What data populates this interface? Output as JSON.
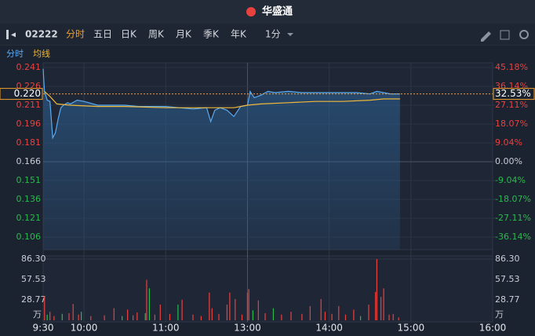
{
  "header": {
    "logo": "华盛通"
  },
  "toolbar": {
    "code": "02222",
    "tabs": [
      "分时",
      "五日",
      "日K",
      "周K",
      "月K",
      "季K",
      "年K"
    ],
    "interval": "1分"
  },
  "chart_data": [
    {
      "type": "line",
      "xlim": [
        0,
        330
      ],
      "xticks": [
        {
          "value": 0,
          "label": "9:30"
        },
        {
          "value": 30,
          "label": "10:00"
        },
        {
          "value": 90,
          "label": "11:00"
        },
        {
          "value": 150,
          "label": "13:00"
        },
        {
          "value": 210,
          "label": "14:00"
        },
        {
          "value": 270,
          "label": "15:00"
        },
        {
          "value": 330,
          "label": "16:00"
        }
      ],
      "ylim": [
        0.106,
        0.241
      ],
      "yticks": [
        0.241,
        0.226,
        0.211,
        0.196,
        0.181,
        0.166,
        0.151,
        0.136,
        0.121,
        0.106
      ],
      "y2lim": [
        -36.14,
        45.18
      ],
      "y2ticks": [
        {
          "value": 45.18,
          "label": "45.18%"
        },
        {
          "value": 36.14,
          "label": "36.14%"
        },
        {
          "value": 27.11,
          "label": "27.11%"
        },
        {
          "value": 18.07,
          "label": "18.07%"
        },
        {
          "value": 9.04,
          "label": "9.04%"
        },
        {
          "value": 0,
          "label": "0.00%"
        },
        {
          "value": -9.04,
          "label": "-9.04%"
        },
        {
          "value": -18.07,
          "label": "-18.07%"
        },
        {
          "value": -27.11,
          "label": "-27.11%"
        },
        {
          "value": -36.14,
          "label": "-36.14%"
        }
      ],
      "last_price": {
        "value": 0.22,
        "label": "0.220"
      },
      "last_change": {
        "value": 32.53,
        "label": "32.53%"
      },
      "series": [
        {
          "name": "分时",
          "color": "#5aaaf2",
          "x": [
            0,
            1,
            3,
            5,
            7,
            9,
            11,
            13,
            15,
            18,
            20,
            25,
            30,
            40,
            50,
            60,
            70,
            80,
            90,
            100,
            110,
            120,
            123,
            126,
            130,
            135,
            140,
            145,
            150,
            152,
            155,
            160,
            165,
            170,
            180,
            190,
            200,
            210,
            220,
            230,
            240,
            245,
            250,
            255,
            262
          ],
          "values": [
            0.24,
            0.222,
            0.215,
            0.214,
            0.185,
            0.189,
            0.2,
            0.209,
            0.211,
            0.213,
            0.212,
            0.215,
            0.214,
            0.211,
            0.211,
            0.211,
            0.21,
            0.21,
            0.21,
            0.209,
            0.208,
            0.209,
            0.198,
            0.207,
            0.209,
            0.207,
            0.202,
            0.21,
            0.211,
            0.222,
            0.217,
            0.219,
            0.222,
            0.221,
            0.222,
            0.221,
            0.221,
            0.221,
            0.221,
            0.221,
            0.22,
            0.222,
            0.221,
            0.22,
            0.22
          ]
        },
        {
          "name": "均线",
          "color": "#f0b93a",
          "x": [
            1,
            5,
            10,
            20,
            40,
            60,
            90,
            120,
            140,
            150,
            160,
            180,
            200,
            220,
            240,
            250,
            262
          ],
          "values": [
            0.222,
            0.218,
            0.212,
            0.211,
            0.21,
            0.21,
            0.209,
            0.209,
            0.209,
            0.211,
            0.212,
            0.213,
            0.214,
            0.214,
            0.215,
            0.216,
            0.216
          ]
        }
      ]
    },
    {
      "type": "bar",
      "xlim": [
        0,
        330
      ],
      "ylim": [
        0,
        86.3
      ],
      "yticks": [
        {
          "value": 86.3,
          "label": "86.30"
        },
        57.53,
        28.77
      ],
      "unit": "万",
      "x": [
        1,
        3,
        5,
        8,
        14,
        19,
        22,
        26,
        28,
        35,
        45,
        52,
        58,
        62,
        66,
        69,
        75,
        76,
        78,
        82,
        86,
        93,
        99,
        102,
        110,
        116,
        122,
        124,
        129,
        135,
        137,
        141,
        146,
        150,
        151,
        154,
        158,
        163,
        169,
        175,
        182,
        190,
        196,
        204,
        207,
        212,
        217,
        222,
        228,
        233,
        239,
        244,
        245,
        248,
        250,
        254,
        257,
        261
      ],
      "values": [
        34,
        8,
        12,
        6,
        9,
        10,
        23,
        8,
        12,
        6,
        7,
        17,
        6,
        15,
        7,
        11,
        10,
        57,
        45,
        8,
        22,
        9,
        22,
        29,
        8,
        6,
        39,
        17,
        9,
        22,
        39,
        30,
        8,
        39,
        44,
        14,
        28,
        10,
        17,
        8,
        12,
        9,
        20,
        30,
        12,
        9,
        20,
        8,
        15,
        6,
        22,
        40,
        86.3,
        33,
        45,
        8,
        9,
        4
      ],
      "colors": [
        "#e8423f",
        "#2ab94e",
        "#e8423f",
        "#e8423f",
        "#2ab94e",
        "#e8423f",
        "#e8423f",
        "#e8423f",
        "#2ab94e",
        "#e8423f",
        "#e8423f",
        "#e8423f",
        "#2ab94e",
        "#e8423f",
        "#e8423f",
        "#e8423f",
        "#2ab94e",
        "#e8423f",
        "#2ab94e",
        "#e8423f",
        "#e8423f",
        "#e8423f",
        "#2ab94e",
        "#e8423f",
        "#e8423f",
        "#e8423f",
        "#e8423f",
        "#e8423f",
        "#e8423f",
        "#e8423f",
        "#e8423f",
        "#e8423f",
        "#e8423f",
        "#e8423f",
        "#e8423f",
        "#2ab94e",
        "#e8423f",
        "#e8423f",
        "#2ab94e",
        "#e8423f",
        "#e8423f",
        "#e8423f",
        "#e8423f",
        "#e8423f",
        "#e8423f",
        "#e8423f",
        "#e8423f",
        "#e8423f",
        "#e8423f",
        "#2ab94e",
        "#e8423f",
        "#e8423f",
        "#e8423f",
        "#e8423f",
        "#e8423f",
        "#e8423f",
        "#e8423f",
        "#e8423f"
      ]
    }
  ]
}
